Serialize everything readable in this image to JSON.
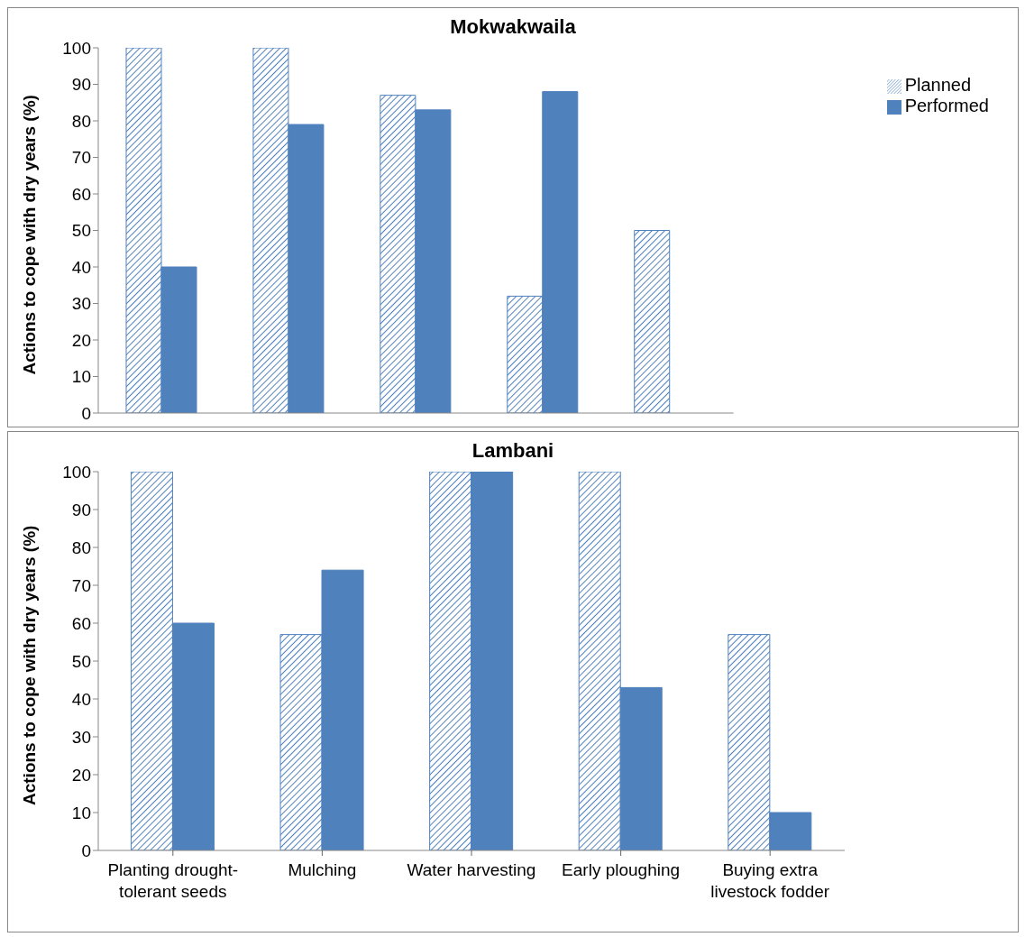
{
  "chart_data": [
    {
      "type": "bar",
      "title": "Mokwakwaila",
      "ylabel": "Actions to cope with dry years (%)",
      "categories": [
        null,
        null,
        null,
        null,
        null
      ],
      "series": [
        {
          "name": "Planned",
          "color": "#4f81bd",
          "values": [
            100,
            100,
            87,
            32,
            50
          ]
        },
        {
          "name": "Performed",
          "color": "#4f81bd",
          "values": [
            40,
            79,
            83,
            88,
            0
          ]
        }
      ],
      "ylim": [
        0,
        100
      ],
      "yticks": [
        0,
        10,
        20,
        30,
        40,
        50,
        60,
        70,
        80,
        90,
        100
      ],
      "legend": "top right",
      "tick_labels": "y"
    },
    {
      "type": "bar",
      "title": "Lambani",
      "ylabel": "Actions to cope with dry years (%)",
      "categories": [
        "Planting drought-tolerant seeds",
        "Mulching",
        "Water harvesting",
        "Early ploughing",
        "Buying extra livestock fodder"
      ],
      "series": [
        {
          "color": "#4f81bd",
          "values": [
            100,
            57,
            100,
            100,
            57
          ]
        },
        {
          "color": "#4f81bd",
          "values": [
            60,
            74,
            100,
            43,
            10
          ]
        }
      ],
      "ylim": [
        0,
        100
      ],
      "yticks": [
        0,
        10,
        20,
        30,
        40,
        50,
        60,
        70,
        80,
        90,
        100
      ]
    }
  ]
}
